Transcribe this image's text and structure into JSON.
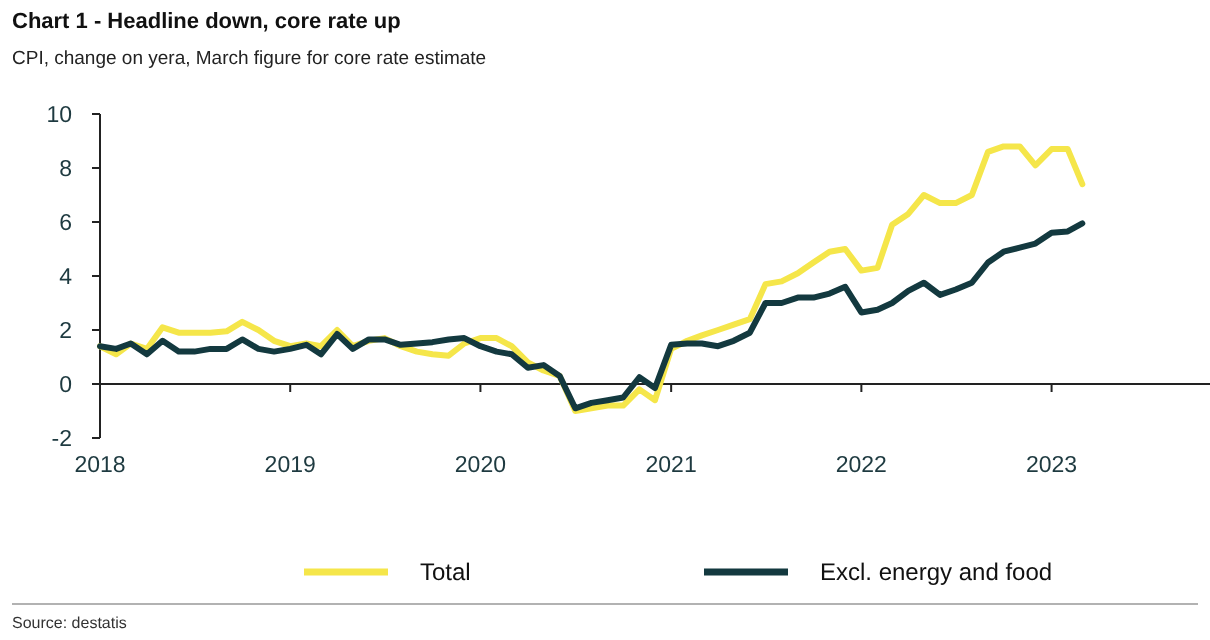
{
  "chart_data": {
    "type": "line",
    "title": "Chart 1 - Headline down, core rate up",
    "subtitle": "CPI, change on yera, March figure for core rate estimate",
    "annotations": [
      "Source: destatis"
    ],
    "x": [
      "2018-01",
      "2018-02",
      "2018-03",
      "2018-04",
      "2018-05",
      "2018-06",
      "2018-07",
      "2018-08",
      "2018-09",
      "2018-10",
      "2018-11",
      "2018-12",
      "2019-01",
      "2019-02",
      "2019-03",
      "2019-04",
      "2019-05",
      "2019-06",
      "2019-07",
      "2019-08",
      "2019-09",
      "2019-10",
      "2019-11",
      "2019-12",
      "2020-01",
      "2020-02",
      "2020-03",
      "2020-04",
      "2020-05",
      "2020-06",
      "2020-07",
      "2020-08",
      "2020-09",
      "2020-10",
      "2020-11",
      "2020-12",
      "2021-01",
      "2021-02",
      "2021-03",
      "2021-04",
      "2021-05",
      "2021-06",
      "2021-07",
      "2021-08",
      "2021-09",
      "2021-10",
      "2021-11",
      "2021-12",
      "2022-01",
      "2022-02",
      "2022-03",
      "2022-04",
      "2022-05",
      "2022-06",
      "2022-07",
      "2022-08",
      "2022-09",
      "2022-10",
      "2022-11",
      "2022-12",
      "2023-01",
      "2023-02",
      "2023-03"
    ],
    "series": [
      {
        "name": "Total",
        "color": "#f5e64a",
        "values": [
          1.4,
          1.1,
          1.5,
          1.3,
          2.1,
          1.9,
          1.9,
          1.9,
          1.95,
          2.3,
          2.0,
          1.6,
          1.4,
          1.5,
          1.4,
          2.0,
          1.4,
          1.6,
          1.7,
          1.4,
          1.2,
          1.1,
          1.05,
          1.5,
          1.7,
          1.7,
          1.4,
          0.8,
          0.5,
          0.3,
          -1.0,
          -0.9,
          -0.8,
          -0.8,
          -0.2,
          -0.6,
          1.3,
          1.6,
          1.8,
          2.0,
          2.2,
          2.4,
          3.7,
          3.8,
          4.1,
          4.5,
          4.9,
          5.0,
          4.2,
          4.3,
          5.9,
          6.3,
          7.0,
          6.7,
          6.7,
          7.0,
          8.6,
          8.8,
          8.8,
          8.1,
          8.7,
          8.7,
          7.4
        ]
      },
      {
        "name": "Excl. energy and food",
        "color": "#13393f",
        "values": [
          1.4,
          1.3,
          1.5,
          1.1,
          1.6,
          1.2,
          1.2,
          1.3,
          1.3,
          1.65,
          1.3,
          1.2,
          1.3,
          1.45,
          1.1,
          1.85,
          1.3,
          1.65,
          1.65,
          1.45,
          1.5,
          1.55,
          1.65,
          1.7,
          1.4,
          1.2,
          1.1,
          0.6,
          0.7,
          0.3,
          -0.9,
          -0.7,
          -0.6,
          -0.5,
          0.25,
          -0.15,
          1.45,
          1.5,
          1.5,
          1.4,
          1.6,
          1.9,
          3.0,
          3.0,
          3.2,
          3.2,
          3.35,
          3.6,
          2.65,
          2.75,
          3.0,
          3.45,
          3.75,
          3.3,
          3.5,
          3.75,
          4.5,
          4.9,
          5.05,
          5.2,
          5.6,
          5.65,
          5.95
        ]
      }
    ],
    "xlim": [
      "2018-01",
      "2023-11"
    ],
    "xticks": [
      {
        "value": "2018-01",
        "label": "2018"
      },
      {
        "value": "2019-01",
        "label": "2019"
      },
      {
        "value": "2020-01",
        "label": "2020"
      },
      {
        "value": "2021-01",
        "label": "2021"
      },
      {
        "value": "2022-01",
        "label": "2022"
      },
      {
        "value": "2023-01",
        "label": "2023"
      }
    ],
    "ylim": [
      -2,
      10
    ],
    "yticks": [
      -2,
      0,
      2,
      4,
      6,
      8,
      10
    ],
    "legend": "bottom",
    "line_style": "solid",
    "marker": "none"
  }
}
